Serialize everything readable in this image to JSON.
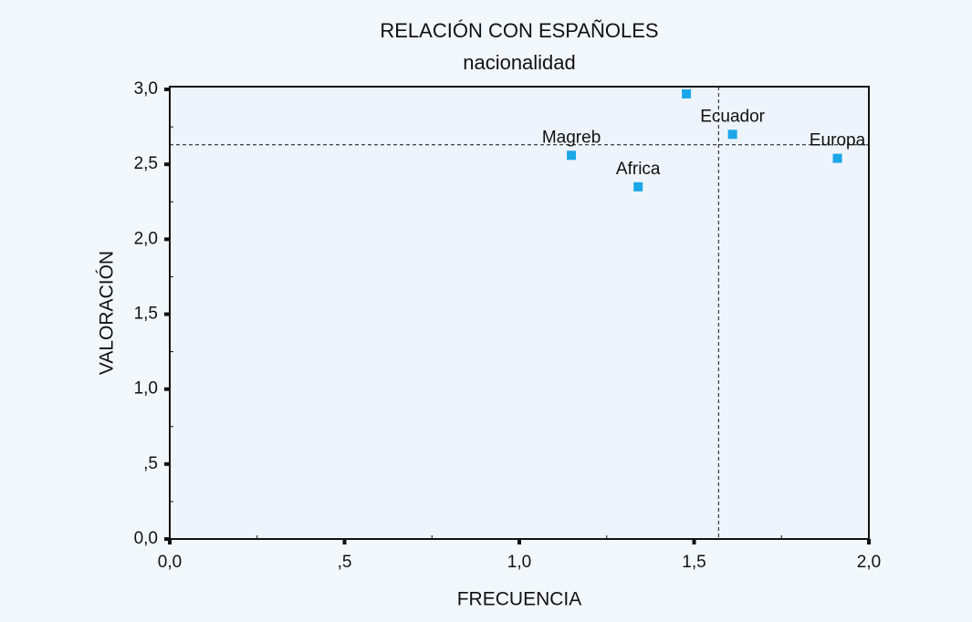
{
  "chart_data": {
    "type": "scatter",
    "title": "RELACIÓN CON ESPAÑOLES",
    "subtitle": "nacionalidad",
    "xlabel": "FRECUENCIA",
    "ylabel": "VALORACIÓN",
    "labels": [
      "Magreb",
      "Africa",
      null,
      "Ecuador",
      "Europa"
    ],
    "x": [
      1.149,
      1.34,
      1.478,
      1.61,
      1.91
    ],
    "y": [
      2.56,
      2.35,
      2.97,
      2.7,
      2.54
    ],
    "color": "#1aa7e8",
    "xlim": [
      0,
      2
    ],
    "ylim": [
      0,
      3
    ],
    "xticks": [
      {
        "value": 0,
        "label": "0,0"
      },
      {
        "value": 0.5,
        "label": ",5"
      },
      {
        "value": 1,
        "label": "1,0"
      },
      {
        "value": 1.5,
        "label": "1,5"
      },
      {
        "value": 2,
        "label": "2,0"
      }
    ],
    "yticks": [
      {
        "value": 0,
        "label": "0,0"
      },
      {
        "value": 0.5,
        "label": ",5"
      },
      {
        "value": 1,
        "label": "1,0"
      },
      {
        "value": 1.5,
        "label": "1,5"
      },
      {
        "value": 2,
        "label": "2,0"
      },
      {
        "value": 2.5,
        "label": "2,5"
      },
      {
        "value": 3,
        "label": "3,0"
      }
    ],
    "xminorticks": [
      0.25,
      0.75,
      1.25,
      1.75
    ],
    "yminorticks": [
      0.25,
      0.75,
      1.25,
      1.75,
      2.25,
      2.75
    ],
    "reflines": {
      "x": 1.57,
      "y": 2.63
    }
  }
}
